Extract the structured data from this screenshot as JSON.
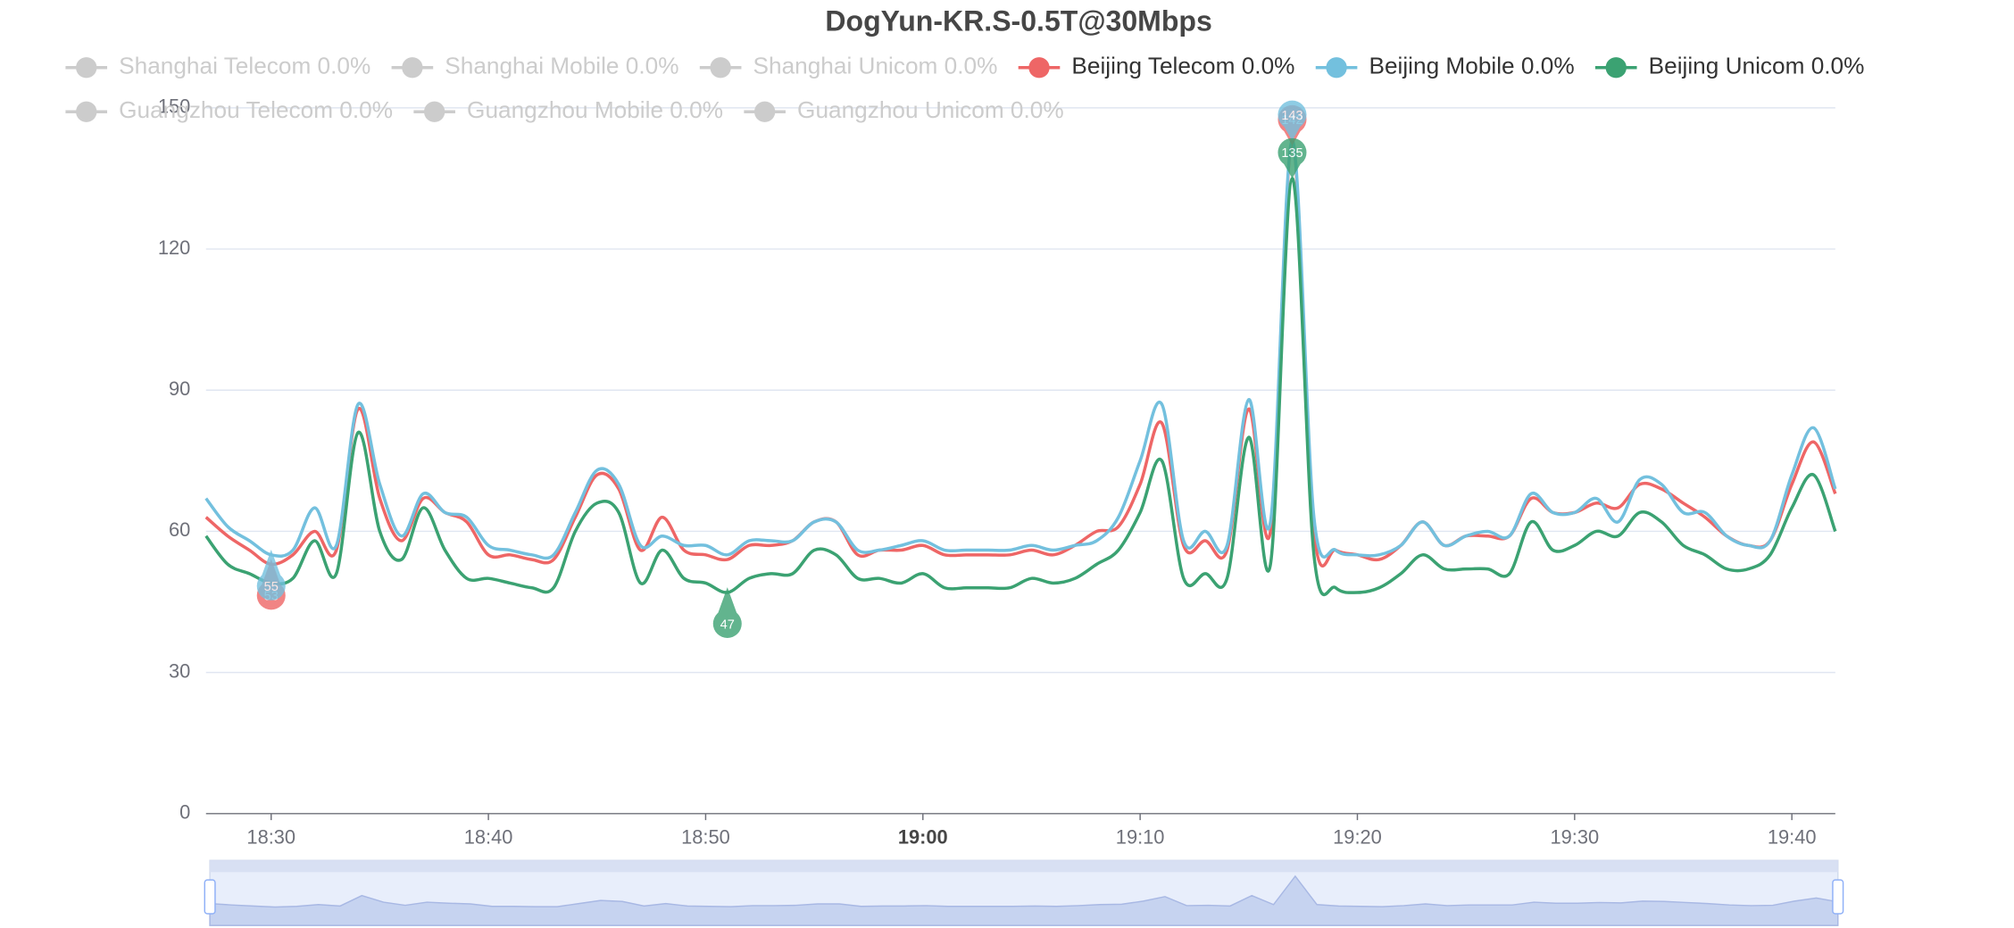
{
  "chart_data": {
    "type": "line",
    "title": "DogYun-KR.S-0.5T@30Mbps",
    "x": [
      "18:27",
      "18:28",
      "18:29",
      "18:30",
      "18:31",
      "18:32",
      "18:33",
      "18:34",
      "18:35",
      "18:36",
      "18:37",
      "18:38",
      "18:39",
      "18:40",
      "18:41",
      "18:42",
      "18:43",
      "18:44",
      "18:45",
      "18:46",
      "18:47",
      "18:48",
      "18:49",
      "18:50",
      "18:51",
      "18:52",
      "18:53",
      "18:54",
      "18:55",
      "18:56",
      "18:57",
      "18:58",
      "18:59",
      "19:00",
      "19:01",
      "19:02",
      "19:03",
      "19:04",
      "19:05",
      "19:06",
      "19:07",
      "19:08",
      "19:09",
      "19:10",
      "19:11",
      "19:12",
      "19:13",
      "19:14",
      "19:15",
      "19:16",
      "19:17",
      "19:18",
      "19:19",
      "19:20",
      "19:21",
      "19:22",
      "19:23",
      "19:24",
      "19:25",
      "19:26",
      "19:27",
      "19:28",
      "19:29",
      "19:30",
      "19:31",
      "19:32",
      "19:33",
      "19:34",
      "19:35",
      "19:36",
      "19:37",
      "19:38",
      "19:39",
      "19:40",
      "19:41",
      "19:42"
    ],
    "xlim": [
      "18:27",
      "19:42"
    ],
    "xticks": [
      "18:30",
      "18:40",
      "18:50",
      "19:00",
      "19:10",
      "19:20",
      "19:30",
      "19:40"
    ],
    "ylim": [
      0,
      150
    ],
    "yticks": [
      0,
      30,
      60,
      90,
      120,
      150
    ],
    "grid": true,
    "series": [
      {
        "name": "Shanghai Telecom 0.0%",
        "hidden": true
      },
      {
        "name": "Shanghai Mobile 0.0%",
        "hidden": true
      },
      {
        "name": "Shanghai Unicom 0.0%",
        "hidden": true
      },
      {
        "name": "Beijing Telecom 0.0%",
        "color": "#ee6666",
        "values": [
          63,
          59,
          56,
          53,
          55,
          60,
          56,
          86,
          67,
          58,
          67,
          64,
          62,
          55,
          55,
          54,
          54,
          63,
          72,
          69,
          56,
          63,
          56,
          55,
          54,
          57,
          57,
          58,
          62,
          62,
          55,
          56,
          56,
          57,
          55,
          55,
          55,
          55,
          56,
          55,
          57,
          60,
          61,
          70,
          83,
          57,
          58,
          56,
          86,
          60,
          142,
          60,
          56,
          55,
          54,
          57,
          62,
          57,
          59,
          59,
          59,
          67,
          64,
          64,
          66,
          65,
          70,
          69,
          66,
          63,
          59,
          57,
          58,
          70,
          79,
          68
        ],
        "markpoints": [
          {
            "x": "19:17",
            "value": 142
          },
          {
            "x": "18:30",
            "value": 53
          }
        ]
      },
      {
        "name": "Beijing Mobile 0.0%",
        "color": "#73c0de",
        "values": [
          67,
          61,
          58,
          55,
          56,
          65,
          57,
          87,
          70,
          59,
          68,
          64,
          63,
          57,
          56,
          55,
          55,
          64,
          73,
          70,
          57,
          59,
          57,
          57,
          55,
          58,
          58,
          58,
          62,
          62,
          56,
          56,
          57,
          58,
          56,
          56,
          56,
          56,
          57,
          56,
          57,
          58,
          63,
          75,
          87,
          58,
          60,
          57,
          88,
          62,
          143,
          63,
          56,
          55,
          55,
          57,
          62,
          57,
          59,
          60,
          59,
          68,
          64,
          64,
          67,
          62,
          71,
          70,
          64,
          64,
          59,
          57,
          58,
          72,
          82,
          69
        ],
        "markpoints": [
          {
            "x": "19:17",
            "value": 143
          },
          {
            "x": "18:30",
            "value": 55
          }
        ]
      },
      {
        "name": "Beijing Unicom 0.0%",
        "color": "#3ba272",
        "values": [
          59,
          53,
          51,
          49,
          50,
          58,
          51,
          81,
          60,
          54,
          65,
          56,
          50,
          50,
          49,
          48,
          48,
          60,
          66,
          64,
          49,
          56,
          50,
          49,
          47,
          50,
          51,
          51,
          56,
          55,
          50,
          50,
          49,
          51,
          48,
          48,
          48,
          48,
          50,
          49,
          50,
          53,
          56,
          64,
          75,
          50,
          51,
          50,
          80,
          53,
          135,
          55,
          48,
          47,
          48,
          51,
          55,
          52,
          52,
          52,
          51,
          62,
          56,
          57,
          60,
          59,
          64,
          62,
          57,
          55,
          52,
          52,
          55,
          65,
          72,
          60
        ],
        "markpoints": [
          {
            "x": "19:17",
            "value": 135
          },
          {
            "x": "18:51",
            "value": 47
          }
        ]
      },
      {
        "name": "Guangzhou Telecom 0.0%",
        "hidden": true
      },
      {
        "name": "Guangzhou Mobile 0.0%",
        "hidden": true
      },
      {
        "name": "Guangzhou Unicom 0.0%",
        "hidden": true
      }
    ]
  }
}
